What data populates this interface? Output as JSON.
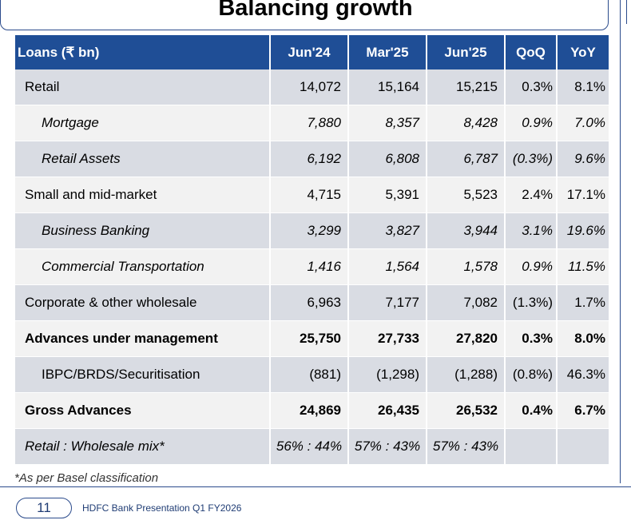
{
  "title": "Balancing growth",
  "table": {
    "headers": [
      "Loans (₹ bn)",
      "Jun'24",
      "Mar'25",
      "Jun'25",
      "QoQ",
      "YoY"
    ],
    "rows": [
      [
        "Retail",
        "14,072",
        "15,164",
        "15,215",
        "0.3%",
        "8.1%"
      ],
      [
        "Mortgage",
        "7,880",
        "8,357",
        "8,428",
        "0.9%",
        "7.0%"
      ],
      [
        "Retail Assets",
        "6,192",
        "6,808",
        "6,787",
        "(0.3%)",
        "9.6%"
      ],
      [
        "Small and mid-market",
        "4,715",
        "5,391",
        "5,523",
        "2.4%",
        "17.1%"
      ],
      [
        "Business Banking",
        "3,299",
        "3,827",
        "3,944",
        "3.1%",
        "19.6%"
      ],
      [
        "Commercial Transportation",
        "1,416",
        "1,564",
        "1,578",
        "0.9%",
        "11.5%"
      ],
      [
        "Corporate & other wholesale",
        "6,963",
        "7,177",
        "7,082",
        "(1.3%)",
        "1.7%"
      ],
      [
        "Advances under management",
        "25,750",
        "27,733",
        "27,820",
        "0.3%",
        "8.0%"
      ],
      [
        "IBPC/BRDS/Securitisation",
        "(881)",
        "(1,298)",
        "(1,288)",
        "(0.8%)",
        "46.3%"
      ],
      [
        "Gross Advances",
        "24,869",
        "26,435",
        "26,532",
        "0.4%",
        "6.7%"
      ],
      [
        "Retail : Wholesale mix*",
        "56% : 44%",
        "57% : 43%",
        "57% : 43%",
        "",
        ""
      ]
    ]
  },
  "footnote": "*As per Basel classification",
  "footer": {
    "page_number": "11",
    "text": "HDFC Bank Presentation Q1 FY2026"
  },
  "colors": {
    "header_bg": "#1f4e96",
    "row_shade": "#d9dce3",
    "row_light": "#f2f2f2"
  }
}
